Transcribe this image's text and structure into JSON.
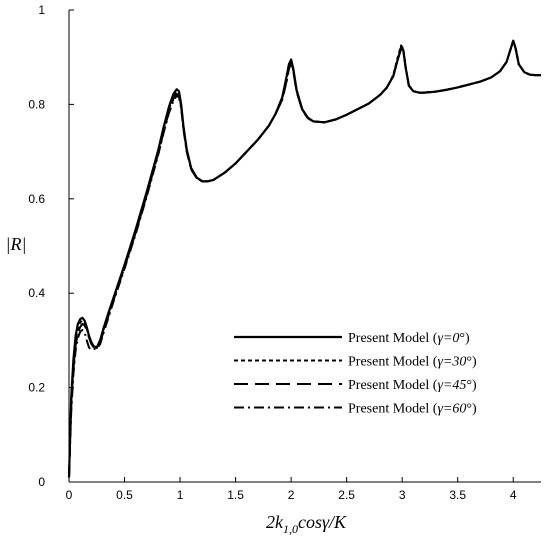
{
  "chart_data": {
    "type": "line",
    "xlabel": "2k_{1,0}cosγ/K",
    "ylabel": "|R|",
    "xlim": [
      0,
      4.25
    ],
    "ylim": [
      0,
      1
    ],
    "x_ticks": [
      "0",
      "0.5",
      "1",
      "1.5",
      "2",
      "2.5",
      "3",
      "3.5",
      "4"
    ],
    "y_ticks": [
      "0",
      "0.2",
      "0.4",
      "0.6",
      "0.8",
      "1"
    ],
    "grid": false,
    "legend_position": "bottom-right",
    "series": [
      {
        "name": "Present Model (γ=0°)",
        "label_prefix": "Present Model (",
        "label_var": "γ=0",
        "label_suffix": "°)",
        "dash": "solid",
        "x": [
          0.0,
          0.02,
          0.04,
          0.06,
          0.08,
          0.1,
          0.12,
          0.14,
          0.16,
          0.18,
          0.2,
          0.22,
          0.25,
          0.28,
          0.31,
          0.35,
          0.4,
          0.5,
          0.6,
          0.7,
          0.8,
          0.85,
          0.9,
          0.94,
          0.97,
          0.99,
          1.01,
          1.03,
          1.06,
          1.1,
          1.15,
          1.2,
          1.25,
          1.3,
          1.4,
          1.5,
          1.6,
          1.7,
          1.8,
          1.86,
          1.92,
          1.96,
          1.98,
          2.0,
          2.02,
          2.05,
          2.1,
          2.15,
          2.2,
          2.3,
          2.4,
          2.5,
          2.6,
          2.7,
          2.8,
          2.86,
          2.92,
          2.96,
          2.99,
          3.01,
          3.03,
          3.06,
          3.1,
          3.15,
          3.2,
          3.3,
          3.4,
          3.5,
          3.6,
          3.7,
          3.8,
          3.88,
          3.94,
          3.98,
          4.0,
          4.02,
          4.05,
          4.1,
          4.15,
          4.2,
          4.25
        ],
        "values": [
          0.01,
          0.18,
          0.26,
          0.31,
          0.335,
          0.345,
          0.348,
          0.342,
          0.328,
          0.31,
          0.297,
          0.288,
          0.285,
          0.3,
          0.325,
          0.355,
          0.39,
          0.46,
          0.535,
          0.615,
          0.7,
          0.75,
          0.795,
          0.822,
          0.832,
          0.828,
          0.8,
          0.755,
          0.705,
          0.665,
          0.645,
          0.637,
          0.637,
          0.64,
          0.655,
          0.675,
          0.7,
          0.725,
          0.755,
          0.78,
          0.815,
          0.86,
          0.885,
          0.895,
          0.875,
          0.83,
          0.79,
          0.772,
          0.764,
          0.762,
          0.768,
          0.778,
          0.79,
          0.802,
          0.82,
          0.835,
          0.86,
          0.895,
          0.918,
          0.915,
          0.88,
          0.84,
          0.828,
          0.825,
          0.825,
          0.827,
          0.831,
          0.836,
          0.842,
          0.848,
          0.857,
          0.87,
          0.89,
          0.92,
          0.935,
          0.92,
          0.885,
          0.868,
          0.863,
          0.862,
          0.862
        ]
      },
      {
        "name": "Present Model (γ=30°)",
        "label_prefix": "Present Model (",
        "label_var": "γ=30",
        "label_suffix": "°)",
        "dash": "dotted",
        "x": [
          0.0,
          0.02,
          0.04,
          0.06,
          0.08,
          0.1,
          0.12,
          0.14,
          0.16,
          0.18,
          0.2,
          0.22,
          0.25,
          0.28,
          0.31,
          0.35,
          0.4,
          0.5,
          0.6,
          0.7,
          0.8,
          0.85,
          0.9,
          0.94,
          0.97,
          0.99,
          1.01,
          1.03,
          1.06,
          1.1,
          1.15,
          1.2,
          1.25,
          1.3,
          1.4,
          1.5,
          1.6,
          1.7,
          1.8,
          1.86,
          1.92,
          1.96,
          1.98,
          2.0,
          2.02,
          2.05,
          2.1,
          2.15,
          2.2,
          2.3,
          2.4,
          2.5,
          2.6,
          2.7,
          2.8,
          2.86,
          2.92,
          2.96,
          2.99,
          3.01,
          3.03,
          3.06,
          3.1,
          3.15,
          3.2,
          3.3,
          3.4,
          3.5,
          3.6,
          3.7,
          3.8,
          3.88,
          3.94,
          3.98,
          4.0,
          4.02,
          4.05,
          4.1,
          4.15,
          4.2,
          4.25
        ],
        "values": [
          0.01,
          0.17,
          0.25,
          0.3,
          0.325,
          0.338,
          0.342,
          0.338,
          0.325,
          0.308,
          0.295,
          0.287,
          0.284,
          0.298,
          0.322,
          0.352,
          0.388,
          0.458,
          0.532,
          0.612,
          0.697,
          0.745,
          0.79,
          0.818,
          0.828,
          0.825,
          0.798,
          0.752,
          0.703,
          0.664,
          0.644,
          0.637,
          0.637,
          0.64,
          0.655,
          0.675,
          0.7,
          0.725,
          0.755,
          0.78,
          0.812,
          0.855,
          0.88,
          0.892,
          0.872,
          0.828,
          0.789,
          0.771,
          0.764,
          0.762,
          0.768,
          0.778,
          0.79,
          0.802,
          0.82,
          0.835,
          0.862,
          0.9,
          0.925,
          0.918,
          0.882,
          0.84,
          0.828,
          0.825,
          0.825,
          0.827,
          0.831,
          0.836,
          0.842,
          0.848,
          0.857,
          0.87,
          0.89,
          0.92,
          0.935,
          0.92,
          0.885,
          0.868,
          0.863,
          0.862,
          0.862
        ]
      },
      {
        "name": "Present Model (γ=45°)",
        "label_prefix": "Present Model (",
        "label_var": "γ=45",
        "label_suffix": "°)",
        "dash": "long-dash",
        "x": [
          0.0,
          0.02,
          0.04,
          0.06,
          0.08,
          0.1,
          0.12,
          0.14,
          0.16,
          0.18,
          0.2,
          0.22,
          0.25,
          0.28,
          0.31,
          0.35,
          0.4,
          0.5,
          0.6,
          0.7,
          0.8,
          0.85,
          0.9,
          0.94,
          0.97,
          0.99,
          1.01,
          1.03,
          1.06,
          1.1,
          1.15,
          1.2,
          1.25,
          1.3,
          1.4,
          1.5,
          1.6,
          1.7,
          1.8,
          1.86,
          1.92,
          1.96,
          1.98,
          2.0,
          2.02,
          2.05,
          2.1,
          2.15,
          2.2,
          2.3,
          2.4,
          2.5,
          2.6,
          2.7,
          2.8,
          2.86,
          2.92,
          2.96,
          2.99,
          3.01,
          3.03,
          3.06,
          3.1,
          3.15,
          3.2,
          3.3,
          3.4,
          3.5,
          3.6,
          3.7,
          3.8,
          3.88,
          3.94,
          3.98,
          4.0,
          4.02,
          4.05,
          4.1,
          4.15,
          4.2,
          4.25
        ],
        "values": [
          0.01,
          0.16,
          0.24,
          0.29,
          0.315,
          0.328,
          0.335,
          0.332,
          0.322,
          0.306,
          0.293,
          0.286,
          0.283,
          0.295,
          0.318,
          0.348,
          0.385,
          0.455,
          0.528,
          0.608,
          0.693,
          0.74,
          0.785,
          0.812,
          0.822,
          0.82,
          0.795,
          0.75,
          0.701,
          0.663,
          0.644,
          0.637,
          0.637,
          0.64,
          0.655,
          0.675,
          0.7,
          0.725,
          0.755,
          0.78,
          0.81,
          0.85,
          0.875,
          0.888,
          0.87,
          0.826,
          0.788,
          0.771,
          0.764,
          0.762,
          0.768,
          0.778,
          0.79,
          0.802,
          0.82,
          0.835,
          0.86,
          0.895,
          0.92,
          0.915,
          0.88,
          0.84,
          0.828,
          0.825,
          0.825,
          0.827,
          0.831,
          0.836,
          0.842,
          0.848,
          0.857,
          0.87,
          0.89,
          0.92,
          0.935,
          0.92,
          0.885,
          0.868,
          0.863,
          0.862,
          0.862
        ]
      },
      {
        "name": "Present Model (γ=60°)",
        "label_prefix": "Present Model (",
        "label_var": "γ=60",
        "label_suffix": "°)",
        "dash": "dash-dot",
        "x": [
          0.0,
          0.02,
          0.04,
          0.06,
          0.08,
          0.1,
          0.12,
          0.14,
          0.16,
          0.18,
          0.2,
          0.22,
          0.25,
          0.28,
          0.31,
          0.35,
          0.4,
          0.5,
          0.6,
          0.7,
          0.8,
          0.85,
          0.9,
          0.94,
          0.97,
          0.99,
          1.01,
          1.03,
          1.06,
          1.1,
          1.15,
          1.2,
          1.25,
          1.3,
          1.4,
          1.5,
          1.6,
          1.7,
          1.8,
          1.86,
          1.92,
          1.96,
          1.98,
          2.0,
          2.02,
          2.05,
          2.1,
          2.15,
          2.2,
          2.3,
          2.4,
          2.5,
          2.6,
          2.7,
          2.8,
          2.86,
          2.92,
          2.96,
          2.99,
          3.01,
          3.03,
          3.06,
          3.1,
          3.15,
          3.2,
          3.3,
          3.4,
          3.5,
          3.6,
          3.7,
          3.8,
          3.88,
          3.94,
          3.98,
          4.0,
          4.02,
          4.05,
          4.1,
          4.15,
          4.2,
          4.25
        ],
        "values": [
          0.01,
          0.15,
          0.23,
          0.28,
          0.305,
          0.318,
          0.322,
          0.318,
          0.3,
          0.285,
          0.28,
          0.282,
          0.282,
          0.292,
          0.315,
          0.345,
          0.382,
          0.452,
          0.525,
          0.605,
          0.69,
          0.738,
          0.782,
          0.808,
          0.818,
          0.816,
          0.792,
          0.748,
          0.7,
          0.662,
          0.644,
          0.637,
          0.637,
          0.64,
          0.655,
          0.675,
          0.7,
          0.725,
          0.755,
          0.78,
          0.81,
          0.85,
          0.876,
          0.89,
          0.872,
          0.828,
          0.789,
          0.771,
          0.764,
          0.762,
          0.768,
          0.778,
          0.79,
          0.802,
          0.82,
          0.835,
          0.86,
          0.897,
          0.922,
          0.916,
          0.88,
          0.84,
          0.828,
          0.825,
          0.825,
          0.827,
          0.831,
          0.836,
          0.842,
          0.848,
          0.857,
          0.87,
          0.89,
          0.92,
          0.935,
          0.92,
          0.885,
          0.868,
          0.863,
          0.862,
          0.862
        ]
      }
    ]
  }
}
